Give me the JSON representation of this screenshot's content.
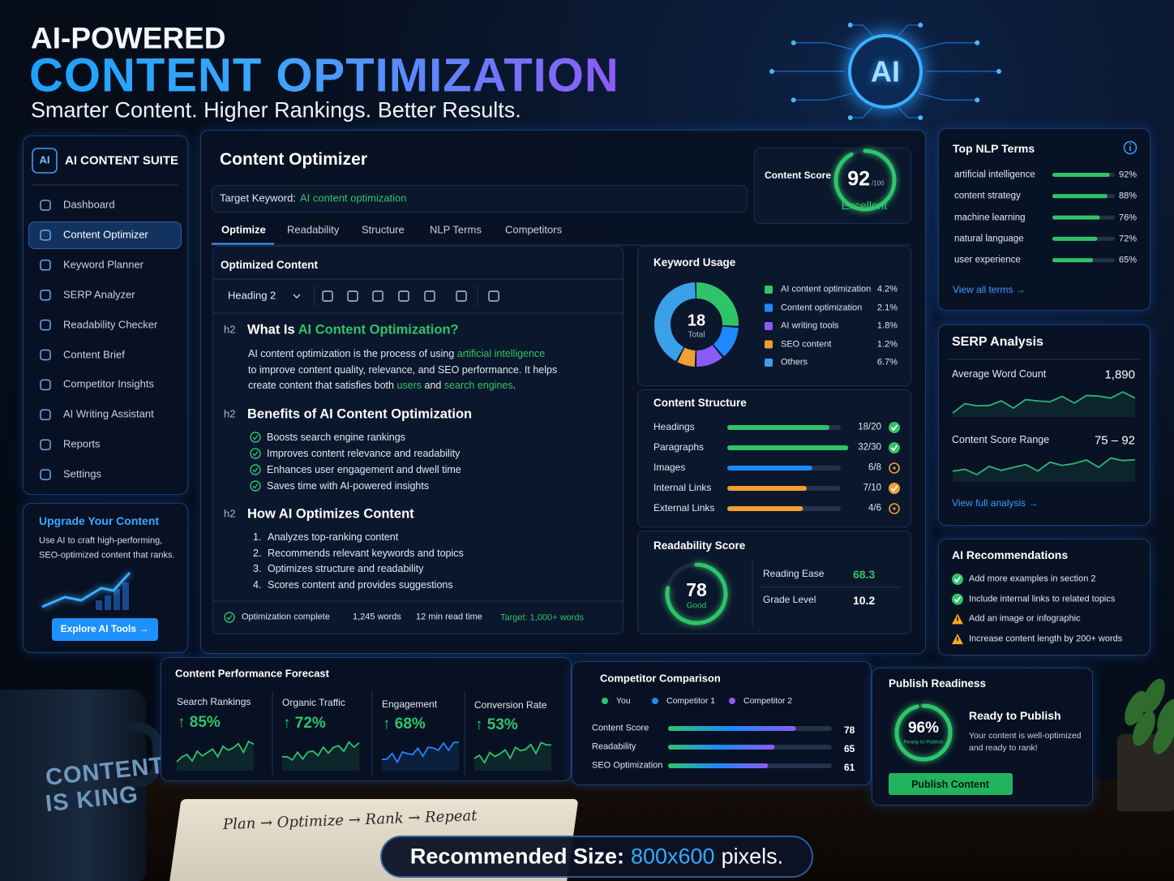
{
  "header": {
    "kicker": "AI-POWERED",
    "title": "CONTENT OPTIMIZATION",
    "tagline": "Smarter Content. Higher Rankings. Better Results.",
    "emblem": "AI"
  },
  "sidebar": {
    "logo": "AI",
    "brand": "AI CONTENT SUITE",
    "nav": [
      "Dashboard",
      "Content Optimizer",
      "Keyword Planner",
      "SERP Analyzer",
      "Readability Checker",
      "Content Brief",
      "Competitor Insights",
      "AI Writing Assistant",
      "Reports",
      "Settings"
    ],
    "upgrade": {
      "title": "Upgrade Your Content",
      "text": [
        "Use AI to craft high-performing,",
        "SEO-optimized content that ranks."
      ],
      "button": "Explore AI Tools →"
    }
  },
  "optimizer": {
    "title": "Content Optimizer",
    "keyword_label": "Target Keyword:",
    "keyword": "AI content optimization",
    "tabs": [
      "Optimize",
      "Readability",
      "Structure",
      "NLP Terms",
      "Competitors"
    ],
    "score": {
      "label": "Content Score",
      "value": 92,
      "max": {
        "value": 100,
        "label": "/100"
      },
      "rating": "Excellent"
    }
  },
  "editor": {
    "title": "Optimized Content",
    "style": "Heading 2",
    "sections": [
      {
        "tag": "h2",
        "heading": [
          {
            "text": "What Is ",
            "highlight": false
          },
          {
            "text": "AI Content Optimization?",
            "highlight": true
          }
        ],
        "lines": [
          [
            {
              "text": "AI content optimization is the process of using ",
              "highlight": false
            },
            {
              "text": "artificial intelligence",
              "highlight": true
            }
          ],
          [
            {
              "text": "to improve content quality, relevance, and SEO performance. It helps",
              "highlight": false
            }
          ],
          [
            {
              "text": "create content that satisfies both ",
              "highlight": false
            },
            {
              "text": "users",
              "highlight": true
            },
            {
              "text": " and ",
              "highlight": false
            },
            {
              "text": "search engines",
              "highlight": true
            },
            {
              "text": ".",
              "highlight": false
            }
          ]
        ]
      },
      {
        "tag": "h2",
        "heading": [
          {
            "text": "Benefits of AI Content Optimization",
            "highlight": false
          }
        ],
        "checklist": [
          "Boosts search engine rankings",
          "Improves content relevance and readability",
          "Enhances user engagement and dwell time",
          "Saves time with AI-powered insights"
        ]
      },
      {
        "tag": "h2",
        "heading": [
          {
            "text": "How AI Optimizes Content",
            "highlight": false
          }
        ],
        "numbered": [
          {
            "n": "1.",
            "text": "Analyzes top-ranking content"
          },
          {
            "n": "2.",
            "text": "Recommends relevant keywords and topics"
          },
          {
            "n": "3.",
            "text": "Optimizes structure and readability"
          },
          {
            "n": "4.",
            "text": "Scores content and provides suggestions"
          }
        ]
      }
    ],
    "status": "Optimization complete",
    "words": "1,245 words",
    "read_time": "12 min read time",
    "target": "Target: 1,000+ words"
  },
  "keyword_usage": {
    "title": "Keyword Usage",
    "total": 18,
    "total_label": "Total",
    "items": [
      {
        "name": "AI content optimization",
        "value": 4.2,
        "label": "4.2%",
        "color": "#2fc46a"
      },
      {
        "name": "Content optimization",
        "value": 2.1,
        "label": "2.1%",
        "color": "#1e88ff"
      },
      {
        "name": "AI writing tools",
        "value": 1.8,
        "label": "1.8%",
        "color": "#8a5cf6"
      },
      {
        "name": "SEO content",
        "value": 1.2,
        "label": "1.2%",
        "color": "#f0a030"
      },
      {
        "name": "Others",
        "value": 6.7,
        "label": "6.7%",
        "color": "#3aa0e8"
      }
    ]
  },
  "content_structure": {
    "title": "Content Structure",
    "rows": [
      {
        "name": "Headings",
        "value": 18,
        "max": 20,
        "label": "18/20",
        "color": "#2fc46a",
        "status": "check",
        "icon_color": "#2fc46a"
      },
      {
        "name": "Paragraphs",
        "value": 32,
        "max": 30,
        "label": "32/30",
        "color": "#2fc46a",
        "status": "check",
        "icon_color": "#2fc46a"
      },
      {
        "name": "Images",
        "value": 6,
        "max": 8,
        "label": "6/8",
        "color": "#1e88ff",
        "status": "pending",
        "icon_color": "#f0a030"
      },
      {
        "name": "Internal Links",
        "value": 7,
        "max": 10,
        "label": "7/10",
        "color": "#f0a030",
        "status": "check",
        "icon_color": "#f0a030"
      },
      {
        "name": "External Links",
        "value": 4,
        "max": 6,
        "label": "4/6",
        "color": "#f0a030",
        "status": "pending",
        "icon_color": "#f0a030"
      }
    ]
  },
  "readability": {
    "title": "Readability Score",
    "score": 78,
    "rating": "Good",
    "scale": [
      0,
      100
    ],
    "metrics": [
      {
        "name": "Reading Ease",
        "value": 68.3
      },
      {
        "name": "Grade Level",
        "value": 10.2
      }
    ]
  },
  "nlp_terms": {
    "title": "Top NLP Terms",
    "terms": [
      {
        "name": "artificial intelligence",
        "value": 92,
        "label": "92%"
      },
      {
        "name": "content strategy",
        "value": 88,
        "label": "88%"
      },
      {
        "name": "machine learning",
        "value": 76,
        "label": "76%"
      },
      {
        "name": "natural language",
        "value": 72,
        "label": "72%"
      },
      {
        "name": "user experience",
        "value": 65,
        "label": "65%"
      }
    ],
    "link": "View all terms →"
  },
  "serp": {
    "title": "SERP Analysis",
    "metrics": [
      {
        "name": "Average Word Count",
        "value": "1,890"
      },
      {
        "name": "Content Score Range",
        "value": "75 – 92"
      }
    ],
    "link": "View full analysis →"
  },
  "recommendations": {
    "title": "AI Recommendations",
    "items": [
      {
        "text": "Add more examples in section 2",
        "status": "ok"
      },
      {
        "text": "Include internal links to related topics",
        "status": "ok"
      },
      {
        "text": "Add an image or infographic",
        "status": "warning"
      },
      {
        "text": "Increase content length by 200+ words",
        "status": "warning"
      }
    ]
  },
  "forecast": {
    "title": "Content Performance Forecast",
    "metrics": [
      {
        "name": "Search Rankings",
        "change": "↑ 85%",
        "color": "#2fc46a"
      },
      {
        "name": "Organic Traffic",
        "change": "↑ 72%",
        "color": "#2fc46a"
      },
      {
        "name": "Engagement",
        "change": "↑ 68%",
        "color": "#1e88ff"
      },
      {
        "name": "Conversion Rate",
        "change": "↑ 53%",
        "color": "#2fc46a"
      }
    ]
  },
  "competitors": {
    "title": "Competitor Comparison",
    "legend": [
      {
        "name": "You",
        "color": "#2fc46a"
      },
      {
        "name": "Competitor 1",
        "color": "#1e88ff"
      },
      {
        "name": "Competitor 2",
        "color": "#8a5cf6"
      }
    ],
    "xlim": [
      0,
      100
    ],
    "rows": [
      {
        "name": "Content Score",
        "value": 78
      },
      {
        "name": "Readability",
        "value": 65
      },
      {
        "name": "SEO Optimization",
        "value": 61
      }
    ]
  },
  "publish": {
    "title": "Publish Readiness",
    "score": 96,
    "score_label": "96%",
    "scale": [
      0,
      100
    ],
    "ring_caption": "Ready to Publish",
    "heading": "Ready to Publish",
    "text": [
      "Your content is well-optimized",
      "and ready to rank!"
    ],
    "button": "Publish Content"
  },
  "scene": {
    "mug": [
      "CONTENT",
      "IS KING"
    ],
    "notebook": "Plan → Optimize → Rank → Repeat"
  },
  "banner": {
    "label": "Recommended Size:",
    "size": "800x600",
    "unit": "pixels."
  }
}
